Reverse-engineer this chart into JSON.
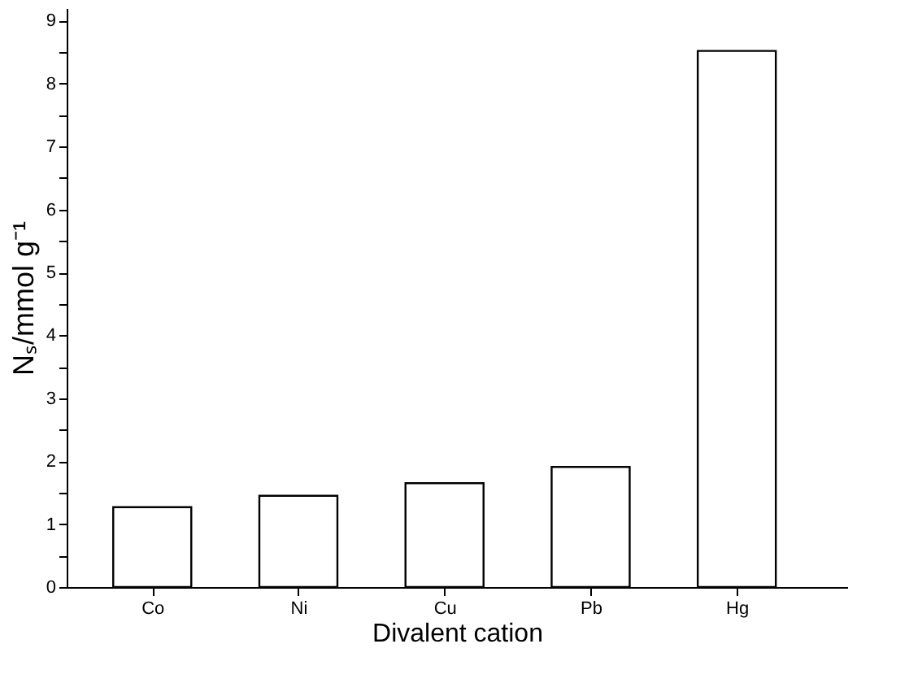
{
  "chart_data": {
    "type": "bar",
    "xlabel": "Divalent cation",
    "ylabel": "Nₛ/mmol g⁻¹",
    "categories": [
      "Co",
      "Ni",
      "Cu",
      "Pb",
      "Hg"
    ],
    "values": [
      1.27,
      1.45,
      1.65,
      1.91,
      8.52
    ],
    "color": "#ffffff",
    "ylim": [
      0,
      9.2
    ],
    "yticks": [
      0,
      {
        "value": 0.5,
        "label": null
      },
      1,
      {
        "value": 1.5,
        "label": null
      },
      2,
      {
        "value": 2.5,
        "label": null
      },
      3,
      {
        "value": 3.5,
        "label": null
      },
      4,
      {
        "value": 4.5,
        "label": null
      },
      5,
      {
        "value": 5.5,
        "label": null
      },
      6,
      {
        "value": 6.5,
        "label": null
      },
      7,
      {
        "value": 7.5,
        "label": null
      },
      8,
      {
        "value": 8.5,
        "label": null
      },
      9
    ],
    "grid": false
  }
}
